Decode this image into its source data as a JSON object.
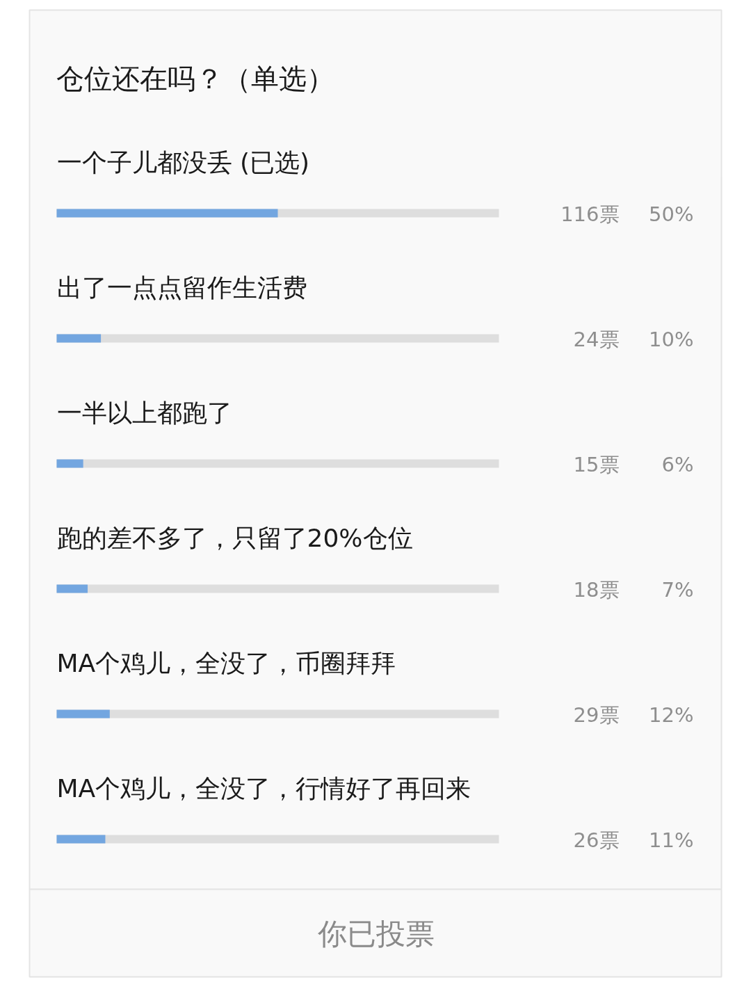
{
  "chart_data": {
    "type": "bar",
    "orientation": "horizontal",
    "title": "仓位还在吗？（单选）",
    "categories": [
      "一个子儿都没丢 (已选)",
      "出了一点点留作生活费",
      "一半以上都跑了",
      "跑的差不多了，只留了20%仓位",
      "MA个鸡儿，全没了，币圈拜拜",
      "MA个鸡儿，全没了，行情好了再回来"
    ],
    "values": [
      50,
      10,
      6,
      7,
      12,
      11
    ],
    "color": "#73a6e0",
    "xlim": [
      0,
      100
    ],
    "value_labels": [
      "50%",
      "10%",
      "6%",
      "7%",
      "12%",
      "11%"
    ],
    "annotations": [
      "116票",
      "24票",
      "15票",
      "18票",
      "29票",
      "26票",
      "你已投票"
    ],
    "tick_labels": false,
    "grid": false
  }
}
